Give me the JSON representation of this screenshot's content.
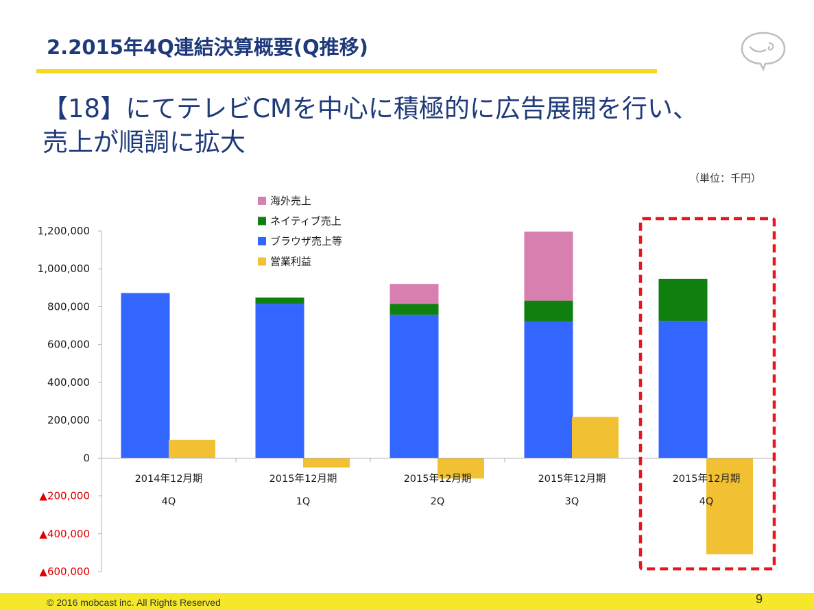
{
  "slide": {
    "title": "2.2015年4Q連結決算概要(Q推移)",
    "headline_line1": "【18】にてテレビCMを中心に積極的に広告展開を行い、",
    "headline_line2": "売上が順調に拡大",
    "unit_note": "（単位：千円）",
    "copyright": "© 2016 mobcast inc. All Rights Reserved",
    "page_number": "9"
  },
  "colors": {
    "title": "#1f3a7a",
    "title_underline": "#f5d81e",
    "footer_bar": "#f5e82a",
    "negative_tick": "#e00000",
    "highlight_box": "#e8141e"
  },
  "chart_data": {
    "type": "bar",
    "stacking": "stacked",
    "categories": [
      {
        "line1": "2014年12月期",
        "line2": "4Q"
      },
      {
        "line1": "2015年12月期",
        "line2": "1Q"
      },
      {
        "line1": "2015年12月期",
        "line2": "2Q"
      },
      {
        "line1": "2015年12月期",
        "line2": "3Q"
      },
      {
        "line1": "2015年12月期",
        "line2": "4Q"
      }
    ],
    "stacked_series": [
      {
        "name": "ブラウザ売上等",
        "color": "#3366ff",
        "values": [
          872000,
          815000,
          757000,
          722000,
          725000
        ]
      },
      {
        "name": "ネイティブ売上",
        "color": "#0f7f0f",
        "values": [
          0,
          33000,
          58000,
          110000,
          222000
        ]
      },
      {
        "name": "海外売上",
        "color": "#d77fae",
        "values": [
          0,
          0,
          105000,
          365000,
          0
        ]
      }
    ],
    "side_series": {
      "name": "営業利益",
      "color": "#f2c133",
      "values": [
        96000,
        -50000,
        -108000,
        218000,
        -508000
      ]
    },
    "legend_order": [
      "海外売上",
      "ネイティブ売上",
      "ブラウザ売上等",
      "営業利益"
    ],
    "legend_position": "top-center",
    "ylim": [
      -600000,
      1200000
    ],
    "yticks": [
      {
        "value": 1200000,
        "label": "1,200,000"
      },
      {
        "value": 1000000,
        "label": "1,000,000"
      },
      {
        "value": 800000,
        "label": "800,000"
      },
      {
        "value": 600000,
        "label": "600,000"
      },
      {
        "value": 400000,
        "label": "400,000"
      },
      {
        "value": 200000,
        "label": "200,000"
      },
      {
        "value": 0,
        "label": "0"
      },
      {
        "value": -200000,
        "label": "▲200,000"
      },
      {
        "value": -400000,
        "label": "▲400,000"
      },
      {
        "value": -600000,
        "label": "▲600,000"
      }
    ],
    "grid": false,
    "highlighted_category_index": 4
  }
}
